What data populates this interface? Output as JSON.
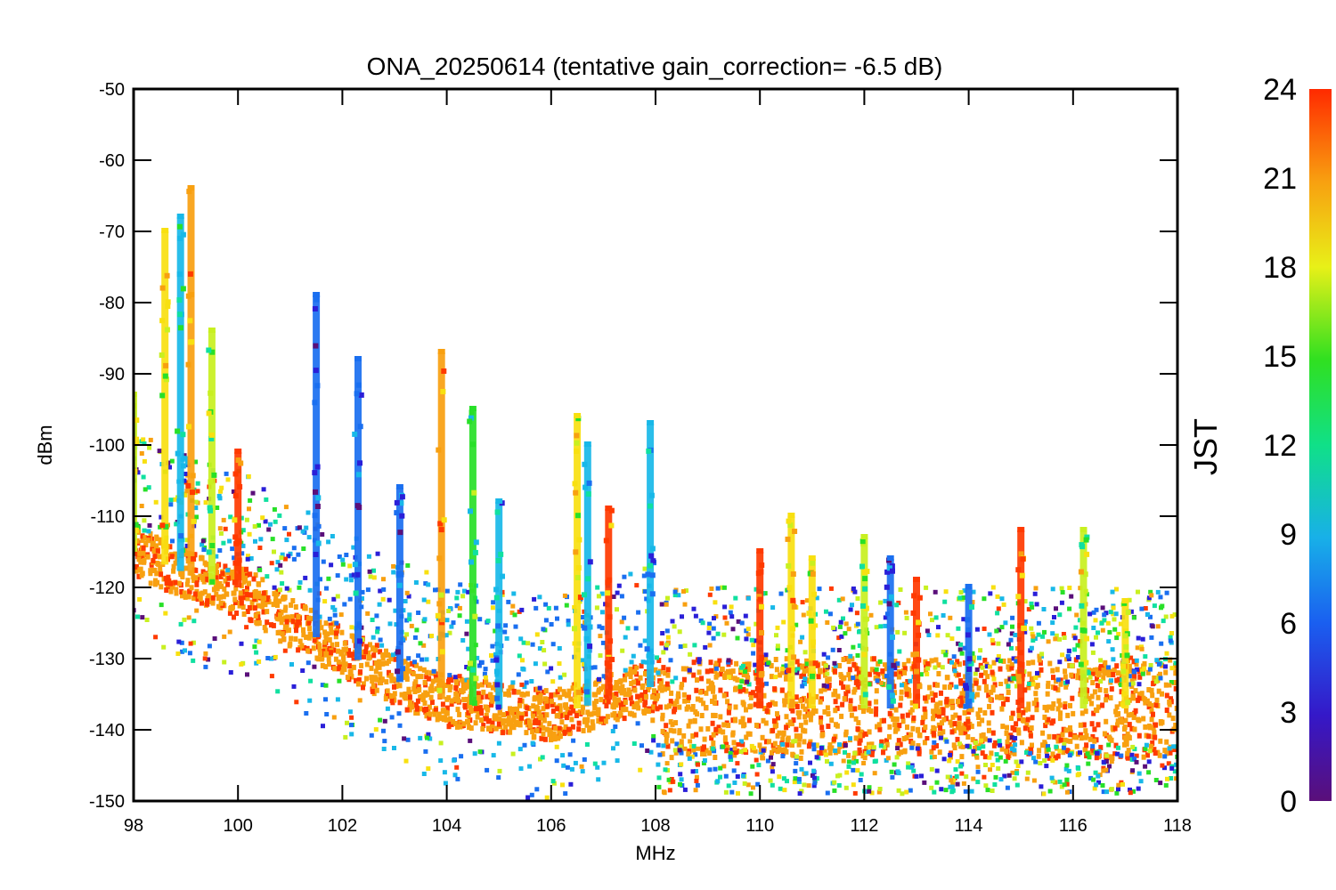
{
  "chart_data": {
    "type": "scatter",
    "title": "ONA_20250614 (tentative gain_correction= -6.5 dB)",
    "xlabel": "MHz",
    "ylabel": "dBm",
    "xlim": [
      98,
      118
    ],
    "ylim": [
      -150,
      -50
    ],
    "x_ticks": [
      "98",
      "100",
      "102",
      "104",
      "106",
      "108",
      "110",
      "112",
      "114",
      "116",
      "118"
    ],
    "y_ticks": [
      "-50",
      "-60",
      "-70",
      "-80",
      "-90",
      "-100",
      "-110",
      "-120",
      "-130",
      "-140",
      "-150"
    ],
    "colorbar": {
      "title": "JST",
      "range": [
        0,
        24
      ],
      "ticks": [
        "24",
        "21",
        "18",
        "15",
        "12",
        "9",
        "6",
        "3",
        "0"
      ],
      "colormap": "rainbow",
      "colors": [
        "#5a0f7a",
        "#2a1fd8",
        "#1a6ff0",
        "#18b8e8",
        "#10e0a0",
        "#28e028",
        "#c8f020",
        "#f8e010",
        "#f8a010",
        "#ff3a00"
      ]
    },
    "noise_floor": [
      {
        "x": 98.0,
        "y": -115
      },
      {
        "x": 99.0,
        "y": -118
      },
      {
        "x": 99.9,
        "y": -121
      },
      {
        "x": 100.0,
        "y": -120
      },
      {
        "x": 101.0,
        "y": -125
      },
      {
        "x": 102.0,
        "y": -129
      },
      {
        "x": 103.0,
        "y": -133
      },
      {
        "x": 104.0,
        "y": -136
      },
      {
        "x": 105.0,
        "y": -137
      },
      {
        "x": 106.0,
        "y": -138
      },
      {
        "x": 107.0,
        "y": -136
      },
      {
        "x": 107.9,
        "y": -134
      },
      {
        "x": 108.0,
        "y": -137
      },
      {
        "x": 118.0,
        "y": -137
      }
    ],
    "peaks": [
      {
        "x": 98.0,
        "y": -93,
        "jst": 15
      },
      {
        "x": 98.6,
        "y": -70,
        "jst": 18
      },
      {
        "x": 98.9,
        "y": -68,
        "jst": 9
      },
      {
        "x": 99.1,
        "y": -64,
        "jst": 22
      },
      {
        "x": 99.5,
        "y": -84,
        "jst": 15
      },
      {
        "x": 100.0,
        "y": -101,
        "jst": 23
      },
      {
        "x": 101.5,
        "y": -79,
        "jst": 4
      },
      {
        "x": 102.3,
        "y": -88,
        "jst": 5
      },
      {
        "x": 103.1,
        "y": -106,
        "jst": 5
      },
      {
        "x": 103.9,
        "y": -87,
        "jst": 20
      },
      {
        "x": 104.5,
        "y": -95,
        "jst": 12
      },
      {
        "x": 105.0,
        "y": -108,
        "jst": 7
      },
      {
        "x": 106.5,
        "y": -96,
        "jst": 19
      },
      {
        "x": 106.7,
        "y": -100,
        "jst": 7
      },
      {
        "x": 107.1,
        "y": -109,
        "jst": 23
      },
      {
        "x": 107.9,
        "y": -97,
        "jst": 7
      },
      {
        "x": 110.0,
        "y": -115,
        "jst": 23
      },
      {
        "x": 110.6,
        "y": -110,
        "jst": 19
      },
      {
        "x": 111.0,
        "y": -116,
        "jst": 18
      },
      {
        "x": 112.0,
        "y": -113,
        "jst": 15
      },
      {
        "x": 112.5,
        "y": -116,
        "jst": 6
      },
      {
        "x": 113.0,
        "y": -119,
        "jst": 23
      },
      {
        "x": 114.0,
        "y": -120,
        "jst": 6
      },
      {
        "x": 115.0,
        "y": -112,
        "jst": 23
      },
      {
        "x": 116.2,
        "y": -112,
        "jst": 16
      },
      {
        "x": 117.0,
        "y": -122,
        "jst": 19
      }
    ]
  }
}
